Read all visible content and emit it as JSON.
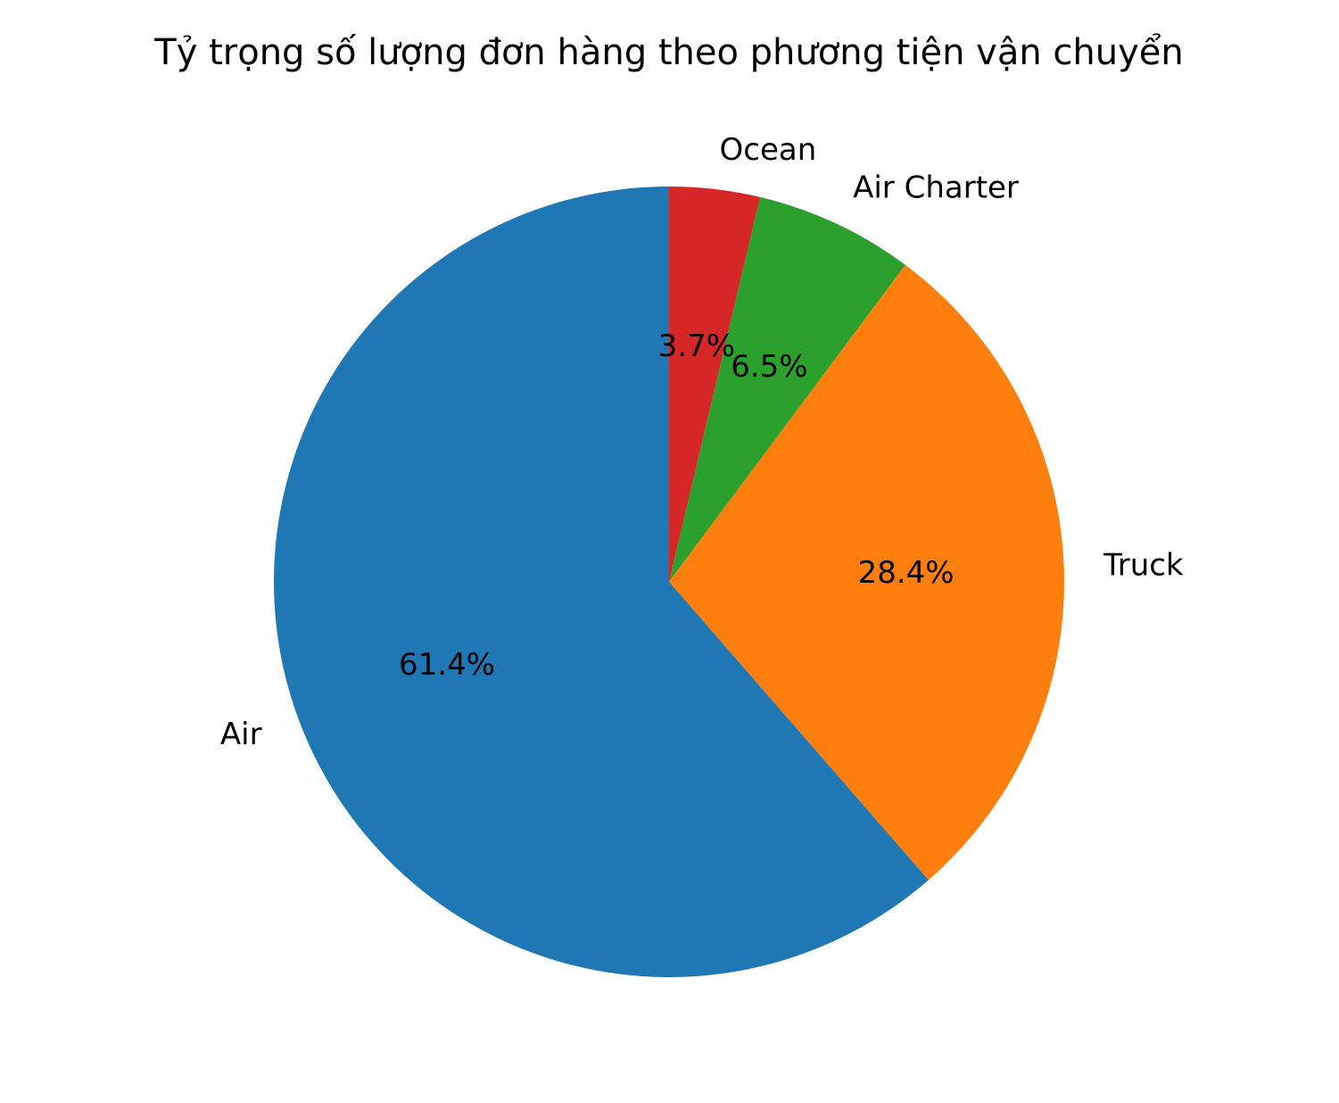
{
  "chart_data": {
    "type": "pie",
    "title": "Tỷ trọng số lượng đơn hàng theo phương tiện vận chuyển",
    "start_angle_deg": 90,
    "direction": "clockwise",
    "slices": [
      {
        "label": "Ocean",
        "value": 3.7,
        "pct_label": "3.7%",
        "color": "#d62728"
      },
      {
        "label": "Air Charter",
        "value": 6.5,
        "pct_label": "6.5%",
        "color": "#2ca02c"
      },
      {
        "label": "Truck",
        "value": 28.4,
        "pct_label": "28.4%",
        "color": "#ff7f0e"
      },
      {
        "label": "Air",
        "value": 61.4,
        "pct_label": "61.4%",
        "color": "#1f77b4"
      }
    ],
    "legend": "none"
  }
}
